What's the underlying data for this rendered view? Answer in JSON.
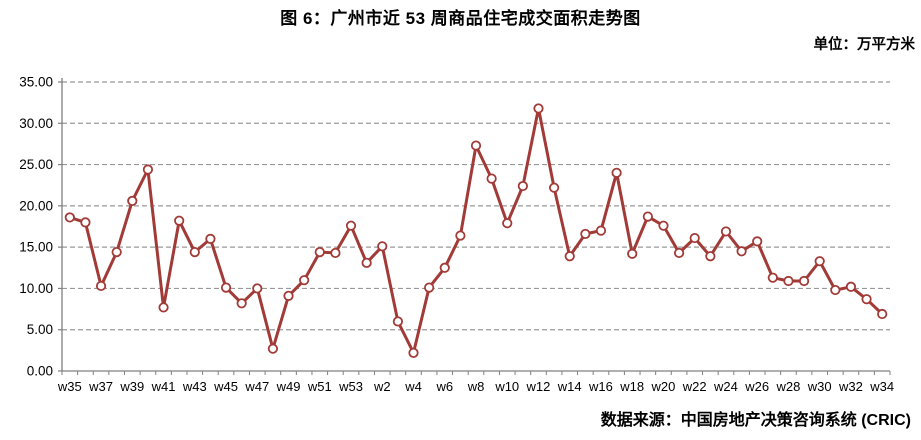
{
  "header": {
    "title": "图 6：广州市近 53 周商品住宅成交面积走势图",
    "unit_label": "单位：万平方米"
  },
  "footer": {
    "source_label": "数据来源：中国房地产决策咨询系统 (CRIC)"
  },
  "chart_data": {
    "type": "line",
    "title": "图 6：广州市近 53 周商品住宅成交面积走势图",
    "unit": "万平方米",
    "x": [
      "w35",
      "w36",
      "w37",
      "w38",
      "w39",
      "w40",
      "w41",
      "w42",
      "w43",
      "w44",
      "w45",
      "w46",
      "w47",
      "w48",
      "w49",
      "w50",
      "w51",
      "w52",
      "w53",
      "w1",
      "w2",
      "w3",
      "w4",
      "w5",
      "w6",
      "w7",
      "w8",
      "w9",
      "w10",
      "w11",
      "w12",
      "w13",
      "w14",
      "w15",
      "w16",
      "w17",
      "w18",
      "w19",
      "w20",
      "w21",
      "w22",
      "w23",
      "w24",
      "w25",
      "w26",
      "w27",
      "w28",
      "w29",
      "w30",
      "w31",
      "w32",
      "w33",
      "w34"
    ],
    "x_tick_labels_shown": [
      "w35",
      "w37",
      "w39",
      "w41",
      "w43",
      "w45",
      "w47",
      "w49",
      "w51",
      "w53",
      "w2",
      "w4",
      "w6",
      "w8",
      "w10",
      "w12",
      "w14",
      "w16",
      "w18",
      "w20",
      "w22",
      "w24",
      "w26",
      "w28",
      "w30",
      "w32",
      "w34"
    ],
    "series": [
      {
        "name": "商品住宅成交面积",
        "values": [
          18.6,
          18.0,
          10.3,
          14.4,
          20.6,
          24.4,
          7.7,
          18.2,
          14.4,
          16.0,
          10.1,
          8.2,
          10.0,
          2.7,
          9.1,
          11.0,
          14.4,
          14.3,
          17.6,
          13.1,
          15.1,
          6.0,
          2.2,
          10.1,
          12.5,
          16.4,
          27.3,
          23.3,
          17.9,
          22.4,
          31.8,
          22.2,
          13.9,
          16.6,
          17.0,
          24.0,
          14.2,
          18.7,
          17.6,
          14.3,
          16.1,
          13.9,
          16.9,
          14.5,
          15.7,
          11.3,
          10.9,
          10.9,
          13.3,
          9.8,
          10.2,
          8.7,
          6.9
        ]
      }
    ],
    "xlabel": "",
    "ylabel": "",
    "ylim": [
      0,
      35
    ],
    "y_tick_step": 5,
    "y_tick_labels": [
      "0.00",
      "5.00",
      "10.00",
      "15.00",
      "20.00",
      "25.00",
      "30.00",
      "35.00"
    ],
    "grid": "horizontal-dashed",
    "legend": "none",
    "colors": {
      "line": "#A23B37",
      "marker_fill": "#FFFFFF",
      "grid": "#999999",
      "axis": "#808080",
      "text": "#000000"
    }
  }
}
